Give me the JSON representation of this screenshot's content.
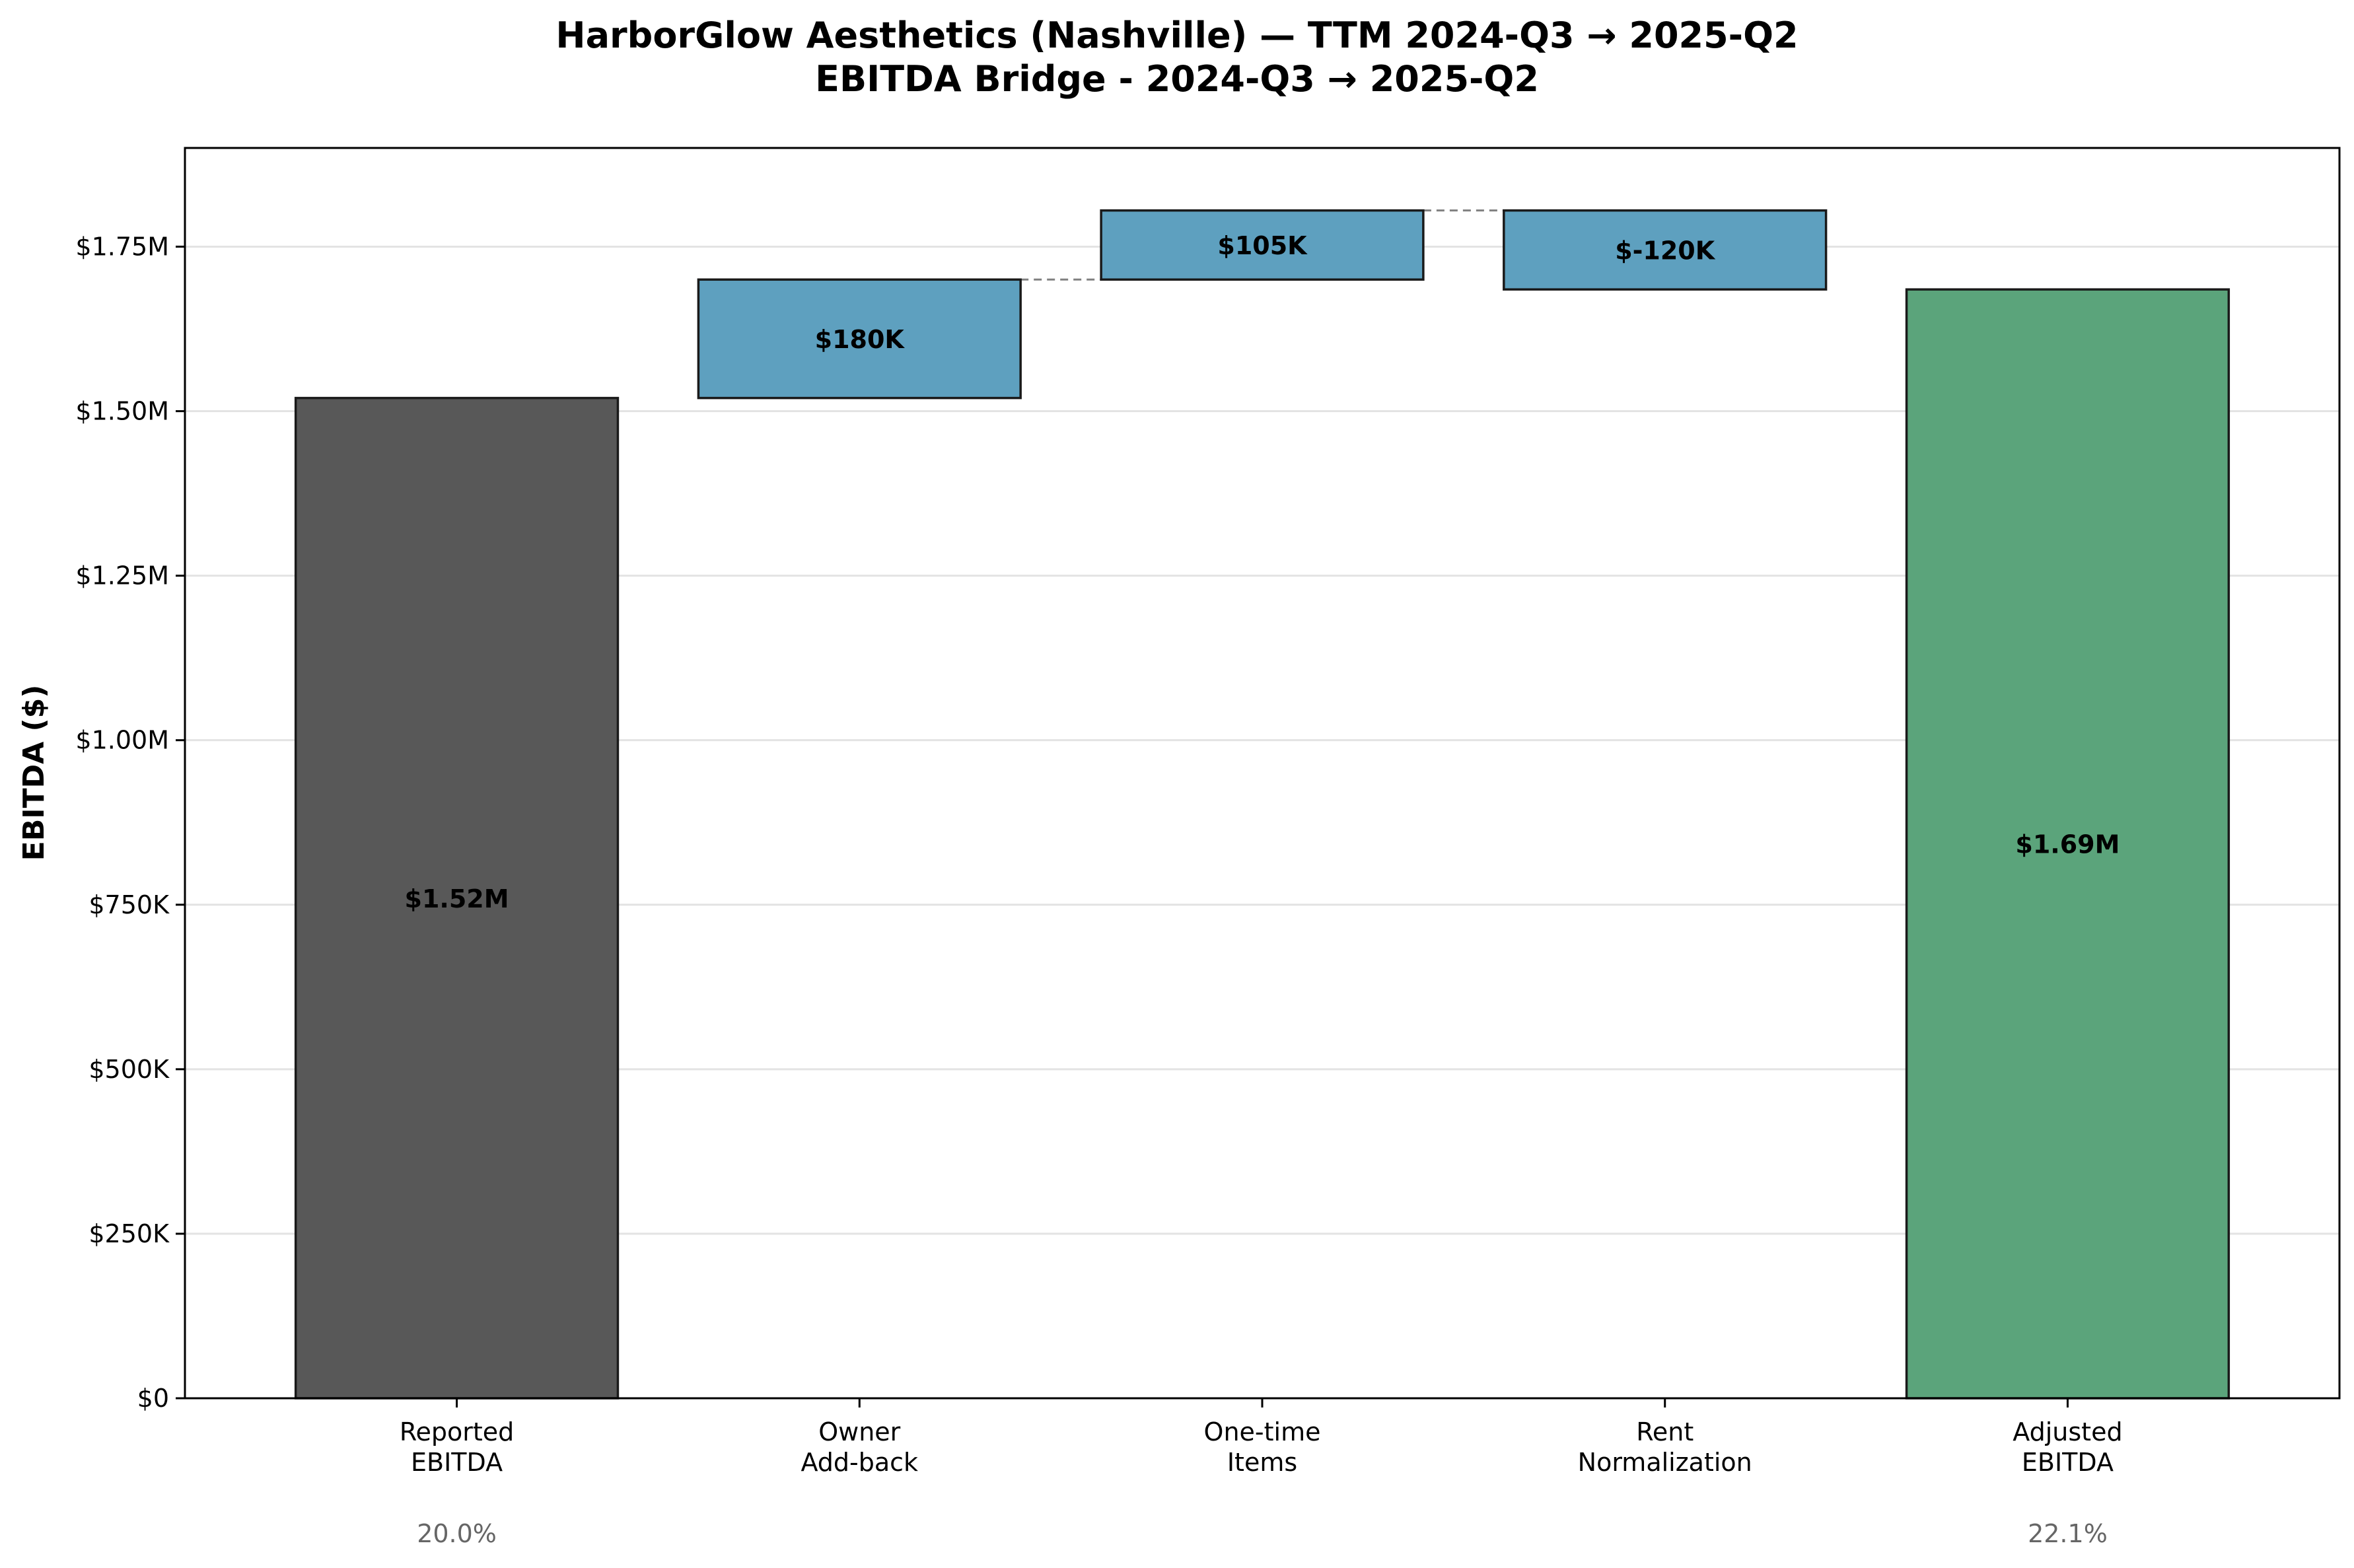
{
  "chart_data": {
    "type": "bar",
    "variant": "waterfall",
    "title": "HarborGlow Aesthetics (Nashville) — TTM 2024-Q3 → 2025-Q2",
    "subtitle": "EBITDA Bridge - 2024-Q3 → 2025-Q2",
    "xlabel": "",
    "ylabel": "EBITDA ($)",
    "ylim": [
      0,
      1900000
    ],
    "yticks": [
      0,
      250000,
      500000,
      750000,
      1000000,
      1250000,
      1500000,
      1750000
    ],
    "ytick_labels": [
      "$0",
      "$250K",
      "$500K",
      "$750K",
      "$1.00M",
      "$1.25M",
      "$1.50M",
      "$1.75M"
    ],
    "grid": "horizontal",
    "bars": [
      {
        "category": [
          "Reported",
          "EBITDA"
        ],
        "kind": "total",
        "value": 1520000,
        "label": "$1.52M",
        "note": "20.0%",
        "color": "#555555"
      },
      {
        "category": [
          "Owner",
          "Add-back"
        ],
        "kind": "delta",
        "value": 180000,
        "label": "$180K",
        "note": "",
        "color": "#5b9ebe"
      },
      {
        "category": [
          "One-time",
          "Items"
        ],
        "kind": "delta",
        "value": 105000,
        "label": "$105K",
        "note": "",
        "color": "#5b9ebe"
      },
      {
        "category": [
          "Rent",
          "Normalization"
        ],
        "kind": "delta",
        "value": -120000,
        "label": "$-120K",
        "note": "",
        "color": "#5b9ebe"
      },
      {
        "category": [
          "Adjusted",
          "EBITDA"
        ],
        "kind": "total",
        "value": 1685000,
        "label": "$1.69M",
        "note": "22.1%",
        "color": "#58a278"
      }
    ],
    "connectors": true
  }
}
